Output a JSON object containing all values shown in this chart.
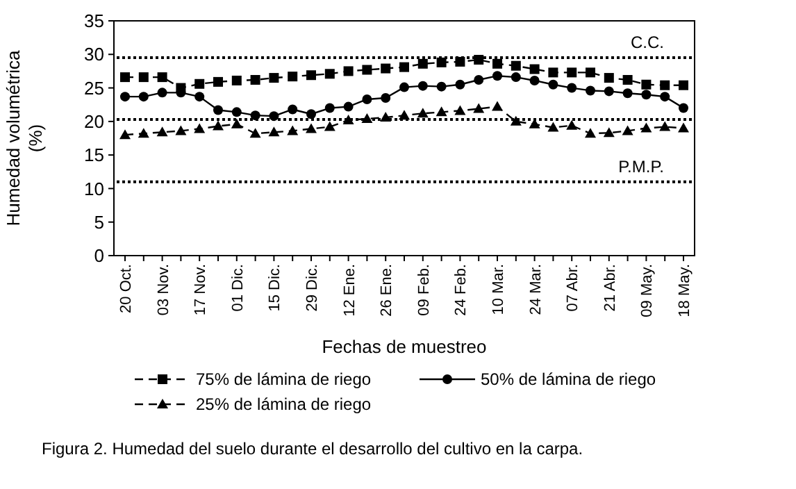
{
  "chart_data": {
    "type": "line",
    "xlabel": "Fechas de muestreo",
    "ylabel": "Humedad volumétrica\n(%)",
    "categories": [
      "20 Oct.",
      null,
      "03 Nov.",
      null,
      "17 Nov.",
      null,
      "01 Dic.",
      null,
      "15 Dic.",
      null,
      "29 Dic.",
      null,
      "12 Ene.",
      null,
      "26 Ene.",
      null,
      "09 Feb.",
      null,
      "24 Feb.",
      null,
      "10 Mar.",
      null,
      "24 Mar.",
      null,
      "07 Abr.",
      null,
      "21 Abr.",
      null,
      "09 May.",
      null,
      "18 May."
    ],
    "ylim": [
      0,
      35
    ],
    "yticks": [
      0,
      5,
      10,
      15,
      20,
      25,
      30,
      35
    ],
    "grid": false,
    "legend": "bottom",
    "series": [
      {
        "name": "75% de lámina de riego",
        "color": "#000000",
        "marker": "square",
        "line_style": "dashed",
        "values": [
          26.6,
          26.6,
          26.6,
          25.0,
          25.6,
          25.9,
          26.1,
          26.2,
          26.5,
          26.7,
          26.9,
          27.1,
          27.5,
          27.7,
          27.9,
          28.1,
          28.6,
          28.8,
          28.9,
          29.2,
          28.6,
          28.3,
          27.8,
          27.3,
          27.3,
          27.3,
          26.5,
          26.2,
          25.5,
          25.4,
          25.4
        ]
      },
      {
        "name": "50% de lámina de riego",
        "color": "#000000",
        "marker": "circle",
        "line_style": "solid",
        "values": [
          23.7,
          23.7,
          24.3,
          24.3,
          23.7,
          21.7,
          21.4,
          20.9,
          20.8,
          21.8,
          21.1,
          22.0,
          22.2,
          23.3,
          23.5,
          25.1,
          25.3,
          25.2,
          25.5,
          26.2,
          26.8,
          26.6,
          26.1,
          25.5,
          25.0,
          24.6,
          24.5,
          24.2,
          24.0,
          23.7,
          22.0
        ]
      },
      {
        "name": "25% de lámina de riego",
        "color": "#000000",
        "marker": "triangle",
        "line_style": "dashed",
        "values": [
          18.0,
          18.2,
          18.4,
          18.6,
          18.9,
          19.3,
          19.6,
          18.2,
          18.4,
          18.6,
          18.9,
          19.2,
          20.2,
          20.4,
          20.6,
          20.9,
          21.2,
          21.4,
          21.6,
          21.9,
          22.2,
          20.0,
          19.6,
          19.1,
          19.4,
          18.2,
          18.3,
          18.6,
          19.0,
          19.2,
          19.0
        ]
      }
    ],
    "ref_lines": [
      {
        "axis": "y",
        "value": 29.5,
        "label": "C.C.",
        "line_style": "dotted",
        "color": "#000000"
      },
      {
        "axis": "y",
        "value": 20.3,
        "line_style": "dotted",
        "color": "#000000"
      },
      {
        "axis": "y",
        "value": 11,
        "label": "P.M.P.",
        "line_style": "dotted",
        "color": "#000000"
      }
    ],
    "annotations": [
      "Figura 2. Humedad del suelo durante el desarrollo del cultivo en la carpa."
    ]
  }
}
